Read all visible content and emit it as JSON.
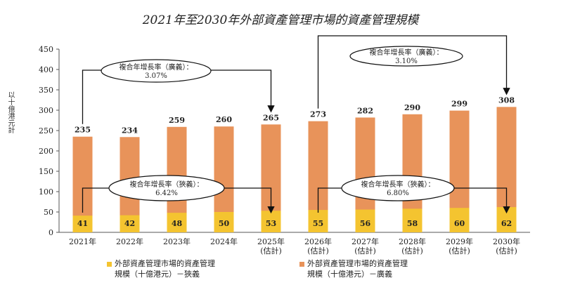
{
  "chart_data": {
    "type": "bar",
    "stacked": true,
    "title": "2021年至2030年外部資產管理市場的資產管理規模",
    "ylabel": "以十億港元計",
    "ylim": [
      0,
      450
    ],
    "yticks": [
      0,
      50,
      100,
      150,
      200,
      250,
      300,
      350,
      400,
      450
    ],
    "categories": [
      "2021年",
      "2022年",
      "2023年",
      "2024年",
      "2025年\n(估計)",
      "2026年\n(估計)",
      "2027年\n(估計)",
      "2028年\n(估計)",
      "2029年\n(估計)",
      "2030年\n(估計)"
    ],
    "series": [
      {
        "name": "外部資產管理市場的資產管理規模（十億港元）－狹義",
        "color": "#f4c430",
        "values": [
          41,
          42,
          48,
          50,
          53,
          55,
          56,
          58,
          60,
          62
        ]
      },
      {
        "name": "外部資產管理市場的資產管理規模（十億港元）－廣義",
        "color": "#e8935a",
        "values": [
          235,
          234,
          259,
          260,
          265,
          273,
          282,
          290,
          299,
          308
        ]
      }
    ],
    "annotations": [
      {
        "label": "複合年增長率（廣義）：",
        "value": "3.07%"
      },
      {
        "label": "複合年增長率（廣義）：",
        "value": "3.10%"
      },
      {
        "label": "複合年增長率（狹義）：",
        "value": "6.42%"
      },
      {
        "label": "複合年增長率（狹義）：",
        "value": "6.80%"
      }
    ],
    "legend": [
      {
        "line1": "外部資產管理市場的資產管理",
        "line2": "規模（十億港元）－狹義"
      },
      {
        "line1": "外部資產管理市場的資產管理",
        "line2": "規模（十億港元）－廣義"
      }
    ]
  }
}
